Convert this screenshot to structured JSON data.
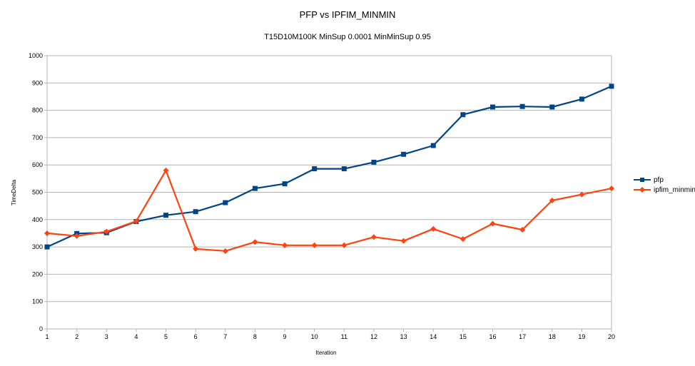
{
  "chart_data": {
    "type": "line",
    "title": "PFP vs IPFIM_MINMIN",
    "subtitle": "T15D10M100K MinSup 0.0001 MinMinSup 0.95",
    "xlabel": "Iteration",
    "ylabel": "TimeDelta",
    "x": [
      1,
      2,
      3,
      4,
      5,
      6,
      7,
      8,
      9,
      10,
      11,
      12,
      13,
      14,
      15,
      16,
      17,
      18,
      19,
      20
    ],
    "ylim": [
      0,
      1000
    ],
    "yticks": [
      0,
      100,
      200,
      300,
      400,
      500,
      600,
      700,
      800,
      900,
      1000
    ],
    "grid": true,
    "legend_position": "right",
    "series": [
      {
        "name": "pfp",
        "color": "#004586",
        "marker": "square",
        "values": [
          300,
          349,
          352,
          393,
          416,
          429,
          462,
          514,
          531,
          586,
          586,
          610,
          639,
          671,
          784,
          812,
          814,
          812,
          841,
          888
        ]
      },
      {
        "name": "ipfim_minmin",
        "color": "#ff420e",
        "marker": "diamond",
        "values": [
          350,
          340,
          356,
          394,
          580,
          293,
          285,
          318,
          306,
          306,
          306,
          336,
          322,
          366,
          329,
          385,
          363,
          470,
          492,
          514
        ]
      }
    ]
  }
}
